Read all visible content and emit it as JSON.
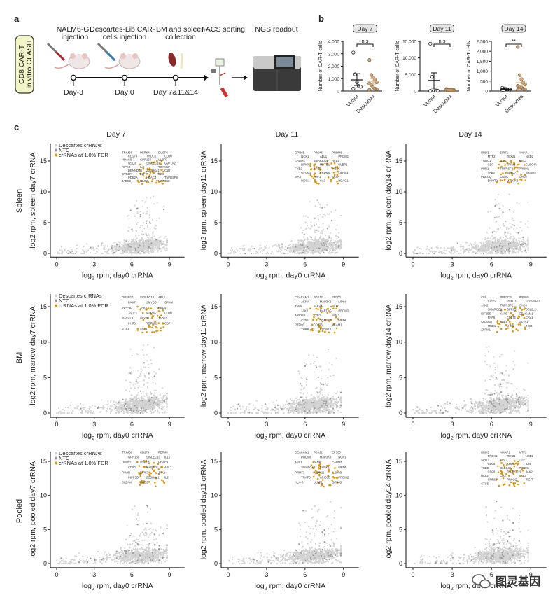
{
  "panel_a": {
    "label": "a",
    "side_box": [
      "CD8 CAR-T",
      "in vitro CLASH"
    ],
    "steps": [
      {
        "title": [
          "NALM6-GL",
          "injection"
        ],
        "day": "Day-3",
        "icon": "mouse-syringe-red-icon"
      },
      {
        "title": [
          "Descartes-Lib CAR-T",
          "cells injection"
        ],
        "day": "Day 0",
        "icon": "mouse-syringe-blue-icon"
      },
      {
        "title": [
          "BM and spleen",
          "collection"
        ],
        "day": "Day 7&11&14",
        "icon": "spleen-bone-icon"
      },
      {
        "title": [
          "FACS sorting"
        ],
        "icon": "facs-sorter-icon"
      },
      {
        "title": [
          "NGS readout"
        ],
        "icon": "sequencer-icon"
      }
    ]
  },
  "panel_b": {
    "label": "b",
    "ylabel": "Number of CAR-T cells",
    "categories": [
      "Vector",
      "Descartes"
    ],
    "colors": {
      "Vector": "#222222",
      "Descartes": "#b58a5a"
    },
    "chart_data": [
      {
        "type": "scatter",
        "title": "Day 7",
        "significance": "n.s",
        "ylim": [
          0,
          4000
        ],
        "yticks": [
          "0",
          "1,000",
          "2,000",
          "3,000",
          "4,000"
        ],
        "ytick_values": [
          0,
          1000,
          2000,
          3000,
          4000
        ],
        "series": [
          {
            "name": "Vector",
            "values": [
              3100,
              1350,
              700,
              400,
              350,
              200
            ],
            "mean": 900,
            "sem": [
              450,
              1400
            ]
          },
          {
            "name": "Descartes",
            "values": [
              2500,
              1300,
              1100,
              900,
              700,
              600,
              500,
              300,
              200,
              150,
              100
            ],
            "mean": 780,
            "sem": [
              560,
              1000
            ]
          }
        ]
      },
      {
        "type": "scatter",
        "title": "Day 11",
        "significance": "n.s",
        "ylim": [
          0,
          15000
        ],
        "yticks": [
          "0",
          "5,000",
          "10,000",
          "15,000"
        ],
        "ytick_values": [
          0,
          5000,
          10000,
          15000
        ],
        "series": [
          {
            "name": "Vector",
            "values": [
              14300,
              4300,
              200,
              120,
              100,
              60
            ],
            "mean": 3200,
            "sem": [
              900,
              5500
            ]
          },
          {
            "name": "Descartes",
            "values": [
              600,
              500,
              450,
              400,
              350,
              300,
              250,
              200,
              150,
              100
            ],
            "mean": 330,
            "sem": [
              250,
              420
            ]
          }
        ]
      },
      {
        "type": "scatter",
        "title": "Day 14",
        "significance": "**",
        "ylim": [
          0,
          2500
        ],
        "yticks": [
          "0",
          "500",
          "1,000",
          "1,500",
          "2,000",
          "2,500"
        ],
        "ytick_values": [
          0,
          500,
          1000,
          1500,
          2000,
          2500
        ],
        "series": [
          {
            "name": "Vector",
            "values": [
              160,
              130,
              100,
              90,
              80,
              60,
              50
            ],
            "mean": 95,
            "sem": [
              75,
              115
            ]
          },
          {
            "name": "Descartes",
            "values": [
              2220,
              800,
              600,
              420,
              330,
              260,
              200,
              160,
              120,
              90,
              60
            ],
            "mean": 420,
            "sem": [
              250,
              590
            ]
          }
        ]
      }
    ]
  },
  "panel_c": {
    "label": "c",
    "columns": [
      "Day 7",
      "Day 11",
      "Day 14"
    ],
    "rows": [
      "Spleen",
      "BM",
      "Pooled"
    ],
    "xlabel": "log2 rpm, day0 crRNA",
    "xlabel_parts": [
      "log",
      "2",
      " rpm, day0 crRNA"
    ],
    "ylabels": [
      [
        "log2 rpm, spleen day7 crRNA",
        "log2 rpm, spleen day11 crRNA",
        "log2 rpm, spleen day14 crRNA"
      ],
      [
        "log2 rpm, marrow day7 crRNA",
        "log2 rpm, marrow day11 crRNA",
        "log2 rpm, marrow day14 crRNA"
      ],
      [
        "log2 rpm, pooled day7 crRNA",
        "log2 rpm, pooled day11 crRNA",
        "log2 rpm, pooled day14 crRNA"
      ]
    ],
    "legend": [
      {
        "label": "Descartes crRNAs",
        "color": "#d3d3d3"
      },
      {
        "label": "NTC",
        "color": "#9a9a9a"
      },
      {
        "label": "crRNAs at 1.0% FDR",
        "color": "#d4961e"
      }
    ],
    "chart_data": {
      "type": "scatter",
      "xticks": [
        0,
        3,
        6,
        9
      ],
      "yticks": [
        0,
        5,
        10,
        15
      ],
      "xlim": [
        -0.5,
        10.2
      ],
      "hit_color": "#d4961e",
      "gene_labels": [
        [
          [
            "TRIM56",
            "PERK4",
            "DUSP5",
            "CD274",
            "THOC1",
            "CD80",
            "HDAC9",
            "GPR160",
            "ULBP1",
            "NSD3",
            "SIGLEC10",
            "G9P1A2",
            "RIPK3",
            "IL7",
            "TCAM1P",
            "DENND4B",
            "ZC3HAV1",
            "C1R",
            "CYB5P",
            "E2F",
            "CDC",
            "PDE2A",
            "HDAC4",
            "TNFRSF9",
            "JADE2",
            "RAG2",
            "MAP3K8"
          ],
          [
            "GPR65",
            "PRDM3",
            "PRDM8",
            "NCK1",
            "ABL1",
            "PRDM1",
            "CADM1",
            "SMARCA4",
            "RLL1",
            "BIRC5",
            "MBTD1",
            "ULBP1",
            "FYB2",
            "RAG1",
            "MBD5",
            "GFOD2",
            "PRDM6",
            "LILRB1",
            "MAS",
            "PHF1",
            "FASN",
            "MDG1",
            "CA3",
            "HDAC1"
          ],
          [
            "BRD3",
            "SIRT1",
            "AMAP1",
            "MTF2",
            "TBX21",
            "NSD2",
            "THOC1",
            "IL16",
            "MBL2",
            "CD7",
            "TRIM2",
            "CLEC4A",
            "PHN1",
            "TNFRSF21",
            "PRDM1",
            "TAB3",
            "SETD7",
            "TRIM25",
            "PRKCQ",
            "CDAC",
            "CHD2",
            "EHMT2",
            "MAP3K8"
          ]
        ],
        [
          [
            "DUSP10",
            "SIGLEC10",
            "ABL1",
            "PAWR",
            "SMYD3",
            "GPAM",
            "INPP5D",
            "JAK2",
            "RELB",
            "JADE1",
            "MAP3K1",
            "CD80",
            "RASAL3",
            "GLYR1",
            "JADE2",
            "PHF3",
            "TGFBR2",
            "CBP",
            "ETS1",
            "SAT6"
          ],
          [
            "CEACAM1",
            "FOXJ2",
            "EP300",
            "AKNA",
            "MAP3K8",
            "LIPIN",
            "TANK",
            "ALCAM",
            "MLH1",
            "JAK2",
            "RAET1G",
            "PRDM2",
            "ARID1B",
            "FYB1",
            "MBL2",
            "CT55",
            "TGFBR3",
            "MBD5",
            "PTPN6",
            "CD276",
            "VCAM1",
            "THRB",
            "CLDN18"
          ],
          [
            "CFI",
            "PPP3CB",
            "PRDM1",
            "CTSS",
            "PRMT1",
            "SERPINA1",
            "JAK2",
            "TNFRSF21",
            "CHD3",
            "SMARCC1",
            "GPR65",
            "BCL2L2",
            "EIF2B5",
            "KAT6",
            "CEACAM1",
            "PHF6",
            "CD274",
            "CAV1",
            "CD300A",
            "ABL1",
            "GLYR1",
            "MBD1",
            "LHX6",
            "ING4",
            "ZFPM1"
          ]
        ],
        [
          [
            "TRIM56",
            "CD274",
            "PERK4",
            "GPR160",
            "SIGLEC10",
            "IL15",
            "ULBP1",
            "USP10",
            "HDAC9",
            "CD80",
            "MAP3K8",
            "ABL1",
            "PAWR",
            "RIPK3",
            "JAK2",
            "INPP5D",
            "ZC3HAV1",
            "IL2",
            "CLDN4",
            "RAG2"
          ],
          [
            "CEACAM1",
            "FOXJ2",
            "EP300",
            "PRDM6",
            "MAP3K8",
            "NCK1",
            "ABL1",
            "TANK",
            "CADM1",
            "SMARCA4",
            "BANK1",
            "MBD5",
            "PRMT3",
            "PTPN11",
            "IL20RB",
            "TRAF3",
            "ARID1B",
            "PRDM2",
            "HLA-B",
            "ULBP1",
            "GPR65"
          ],
          [
            "BRD3",
            "AMAP1",
            "MTF2",
            "PRDX1",
            "TBX21",
            "NSD2",
            "SIRT1",
            "MBL2",
            "CD7",
            "CD38",
            "RHOA",
            "IL36",
            "TCDB",
            "CLEC4A",
            "PRDM1",
            "CD28",
            "TNFRSF21",
            "JAK2",
            "BCL2",
            "CH3",
            "TAB3",
            "GPR65",
            "PRKCQ",
            "TIGIT",
            "CTSS"
          ]
        ]
      ]
    }
  },
  "watermark": {
    "text": "图灵基因",
    "icon": "wechat-logo-icon"
  }
}
